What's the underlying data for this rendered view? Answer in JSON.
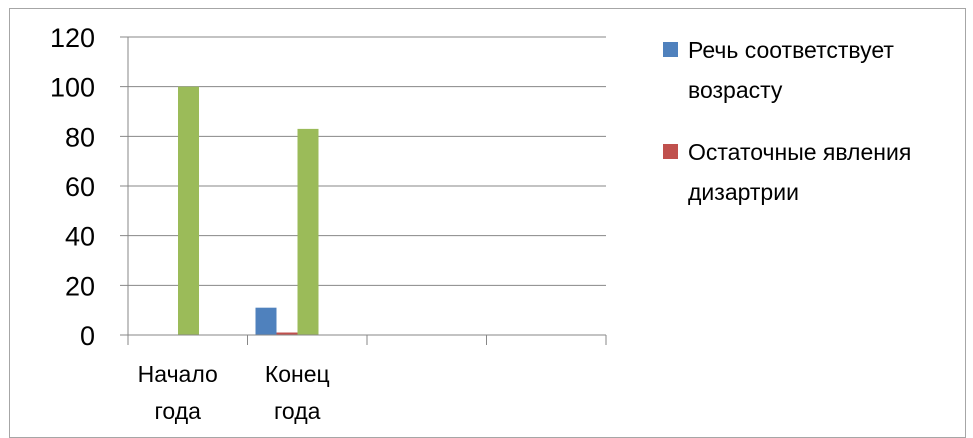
{
  "chart_data": {
    "type": "bar",
    "categories": [
      [
        "Начало",
        "года"
      ],
      [
        "Конец",
        "года"
      ],
      [
        "",
        ""
      ],
      [
        "",
        ""
      ]
    ],
    "series": [
      {
        "name": "Речь соответствует возрасту",
        "color": "#4f81bd",
        "values": [
          0,
          11,
          null,
          null
        ]
      },
      {
        "name": "Остаточные явления дизартрии",
        "color": "#c0504d",
        "values": [
          0,
          1,
          null,
          null
        ]
      },
      {
        "name": "",
        "color": "#9bbb59",
        "values": [
          100,
          83,
          null,
          null
        ]
      }
    ],
    "ylim": [
      0,
      120
    ],
    "yticks": [
      "0",
      "20",
      "40",
      "60",
      "80",
      "100",
      "120"
    ],
    "grid": true,
    "legend_position": "right"
  },
  "legend": [
    {
      "lines": [
        "Речь соответствует",
        "возрасту"
      ],
      "color": "#4f81bd"
    },
    {
      "lines": [
        "Остаточные явления",
        "дизартрии"
      ],
      "color": "#c0504d"
    }
  ]
}
